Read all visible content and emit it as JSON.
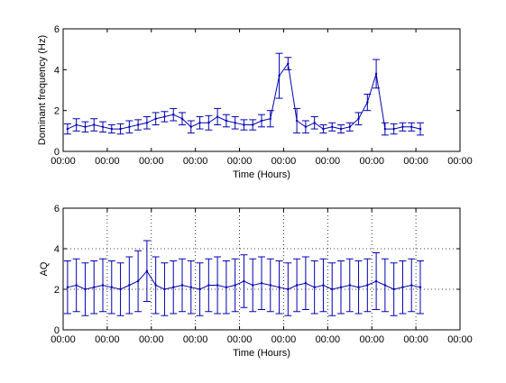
{
  "colors": {
    "series": "#0000b4",
    "axis": "#000000",
    "grid": "#000000",
    "background": "#ffffff"
  },
  "chart_data": [
    {
      "type": "line",
      "error_bars": true,
      "title": "",
      "xlabel": "Time (Hours)",
      "ylabel": "Dominant frequency (Hz)",
      "ylim": [
        0,
        6
      ],
      "yticks": [
        0,
        2,
        4,
        6
      ],
      "xticks": [
        "00:00",
        "00:00",
        "00:00",
        "00:00",
        "00:00",
        "00:00",
        "00:00",
        "00:00",
        "00:00",
        "00:00"
      ],
      "xlim": [
        0,
        9
      ],
      "grid": false,
      "series": [
        {
          "x": [
            0.1,
            0.3,
            0.5,
            0.7,
            0.9,
            1.1,
            1.3,
            1.5,
            1.7,
            1.9,
            2.1,
            2.3,
            2.5,
            2.7,
            2.9,
            3.1,
            3.3,
            3.5,
            3.7,
            3.9,
            4.1,
            4.3,
            4.5,
            4.7,
            4.9,
            5.1,
            5.3,
            5.5,
            5.7,
            5.9,
            6.1,
            6.3,
            6.5,
            6.7,
            6.9,
            7.1,
            7.3,
            7.5,
            7.7,
            7.9,
            8.1
          ],
          "y": [
            1.1,
            1.3,
            1.2,
            1.3,
            1.2,
            1.1,
            1.1,
            1.2,
            1.3,
            1.4,
            1.6,
            1.7,
            1.8,
            1.6,
            1.2,
            1.4,
            1.4,
            1.7,
            1.5,
            1.4,
            1.3,
            1.3,
            1.5,
            1.6,
            3.7,
            4.3,
            1.5,
            1.2,
            1.4,
            1.1,
            1.2,
            1.1,
            1.2,
            1.6,
            2.4,
            3.8,
            1.1,
            1.1,
            1.2,
            1.2,
            1.1
          ],
          "err": [
            0.25,
            0.3,
            0.25,
            0.3,
            0.25,
            0.2,
            0.25,
            0.3,
            0.25,
            0.3,
            0.3,
            0.25,
            0.3,
            0.3,
            0.3,
            0.3,
            0.35,
            0.4,
            0.3,
            0.3,
            0.25,
            0.25,
            0.3,
            0.4,
            1.1,
            0.3,
            0.6,
            0.3,
            0.3,
            0.2,
            0.2,
            0.2,
            0.2,
            0.3,
            0.4,
            0.7,
            0.3,
            0.25,
            0.2,
            0.2,
            0.3
          ]
        }
      ]
    },
    {
      "type": "line",
      "error_bars": true,
      "title": "",
      "xlabel": "Time (Hours)",
      "ylabel": "AQ",
      "ylim": [
        0,
        6
      ],
      "yticks": [
        0,
        2,
        4,
        6
      ],
      "xticks": [
        "00:00",
        "00:00",
        "00:00",
        "00:00",
        "00:00",
        "00:00",
        "00:00",
        "00:00",
        "00:00",
        "00:00"
      ],
      "xlim": [
        0,
        9
      ],
      "grid": true,
      "series": [
        {
          "x": [
            0.1,
            0.3,
            0.5,
            0.7,
            0.9,
            1.1,
            1.3,
            1.5,
            1.7,
            1.9,
            2.1,
            2.3,
            2.5,
            2.7,
            2.9,
            3.1,
            3.3,
            3.5,
            3.7,
            3.9,
            4.1,
            4.3,
            4.5,
            4.7,
            4.9,
            5.1,
            5.3,
            5.5,
            5.7,
            5.9,
            6.1,
            6.3,
            6.5,
            6.7,
            6.9,
            7.1,
            7.3,
            7.5,
            7.7,
            7.9,
            8.1
          ],
          "y": [
            2.1,
            2.2,
            2.0,
            2.1,
            2.2,
            2.1,
            2.0,
            2.2,
            2.4,
            2.9,
            2.2,
            2.0,
            2.1,
            2.2,
            2.1,
            2.0,
            2.2,
            2.2,
            2.1,
            2.2,
            2.4,
            2.2,
            2.3,
            2.2,
            2.1,
            2.0,
            2.2,
            2.3,
            2.1,
            2.2,
            2.0,
            2.1,
            2.2,
            2.1,
            2.2,
            2.4,
            2.2,
            2.0,
            2.1,
            2.2,
            2.1
          ],
          "err": [
            1.3,
            1.3,
            1.3,
            1.3,
            1.3,
            1.3,
            1.3,
            1.4,
            1.5,
            1.5,
            1.4,
            1.3,
            1.3,
            1.3,
            1.3,
            1.3,
            1.3,
            1.4,
            1.3,
            1.3,
            1.3,
            1.3,
            1.3,
            1.3,
            1.3,
            1.3,
            1.3,
            1.3,
            1.3,
            1.3,
            1.3,
            1.3,
            1.3,
            1.3,
            1.3,
            1.4,
            1.3,
            1.3,
            1.3,
            1.3,
            1.3
          ]
        }
      ]
    }
  ]
}
